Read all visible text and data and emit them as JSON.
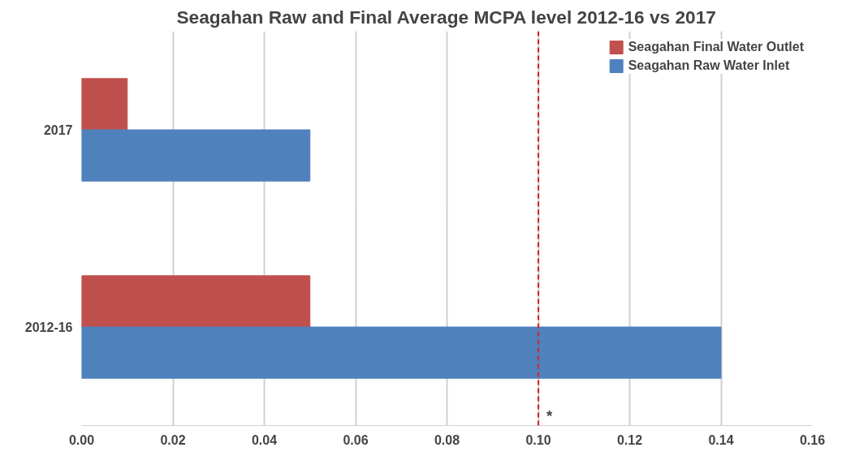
{
  "chart_data": {
    "type": "bar",
    "orientation": "horizontal",
    "title": "Seagahan Raw and Final Average MCPA level 2012-16 vs 2017",
    "categories": [
      "2017",
      "2012-16"
    ],
    "series": [
      {
        "name": "Seagahan Final Water Outlet",
        "color": "#c0504d",
        "values": [
          0.01,
          0.05
        ]
      },
      {
        "name": "Seagahan Raw Water Inlet",
        "color": "#4f81bd",
        "values": [
          0.05,
          0.14
        ]
      }
    ],
    "xlim": [
      0,
      0.16
    ],
    "xticks": [
      {
        "value": 0,
        "label": "0.00"
      },
      {
        "value": 0.02,
        "label": "0.02"
      },
      {
        "value": 0.04,
        "label": "0.04"
      },
      {
        "value": 0.06,
        "label": "0.06"
      },
      {
        "value": 0.08,
        "label": "0.08"
      },
      {
        "value": 0.1,
        "label": "0.10"
      },
      {
        "value": 0.12,
        "label": "0.12"
      },
      {
        "value": 0.14,
        "label": "0.14"
      },
      {
        "value": 0.16,
        "label": "0.16"
      }
    ],
    "ref_lines": [
      {
        "axis": "x",
        "value": 0.1,
        "label": "*",
        "color": "#e02020",
        "line_style": "dashed"
      }
    ],
    "grid": "x",
    "legend": "top right"
  }
}
